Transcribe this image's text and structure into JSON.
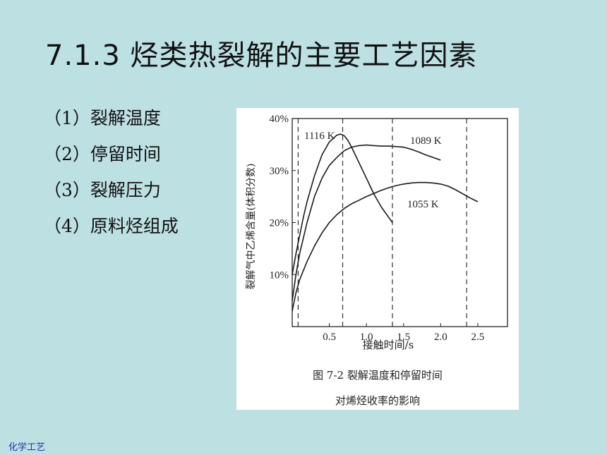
{
  "slide": {
    "title": "7.1.3 烃类热裂解的主要工艺因素",
    "bullets": [
      "（1）裂解温度",
      "（2）停留时间",
      "（3）裂解压力",
      "（4）原料烃组成"
    ],
    "footer": "化学工艺"
  },
  "chart_data": {
    "type": "line",
    "ylabel": "裂解气中乙烯含量(体积分数)",
    "xlabel": "接触时间/s",
    "xlim": [
      0,
      2.9
    ],
    "ylim": [
      0,
      40
    ],
    "xticks": [
      0.5,
      1.0,
      1.5,
      2.0,
      2.5
    ],
    "xtick_labels": [
      "0.5",
      "1.0",
      "1.5",
      "2.0",
      "2.5"
    ],
    "yticks": [
      10,
      20,
      30,
      40
    ],
    "ytick_labels": [
      "10%",
      "20%",
      "30%",
      "40%"
    ],
    "vlines": [
      0.08,
      0.68,
      1.35,
      2.35
    ],
    "series": [
      {
        "name": "1116 K",
        "x": [
          0.0,
          0.05,
          0.1,
          0.15,
          0.2,
          0.3,
          0.4,
          0.5,
          0.6,
          0.65,
          0.7,
          0.75,
          0.8,
          0.9,
          1.0,
          1.1,
          1.2,
          1.3,
          1.35
        ],
        "y": [
          10,
          14,
          17.5,
          21,
          24,
          29,
          33,
          35.5,
          36.8,
          37,
          36.7,
          35.8,
          34.5,
          31.5,
          28.5,
          25.5,
          23,
          21,
          20
        ]
      },
      {
        "name": "1089 K",
        "x": [
          0.0,
          0.05,
          0.1,
          0.2,
          0.3,
          0.4,
          0.5,
          0.6,
          0.7,
          0.8,
          0.9,
          1.0,
          1.1,
          1.2,
          1.3,
          1.4,
          1.5,
          1.6,
          1.7,
          1.8,
          1.9,
          2.0
        ],
        "y": [
          5,
          10,
          14,
          20,
          25,
          28.5,
          31,
          32.5,
          33.8,
          34.5,
          34.8,
          34.9,
          34.8,
          34.7,
          34.7,
          34.6,
          34.5,
          34.1,
          33.6,
          33.0,
          32.5,
          32
        ]
      },
      {
        "name": "1055 K",
        "x": [
          0.0,
          0.05,
          0.1,
          0.2,
          0.3,
          0.4,
          0.5,
          0.6,
          0.7,
          0.8,
          0.9,
          1.0,
          1.1,
          1.2,
          1.3,
          1.4,
          1.5,
          1.6,
          1.7,
          1.8,
          1.9,
          2.0,
          2.1,
          2.2,
          2.3,
          2.4,
          2.5
        ],
        "y": [
          3,
          6.5,
          9,
          12.5,
          15.5,
          18,
          20,
          21.5,
          22.7,
          23.6,
          24.3,
          25,
          25.6,
          26.2,
          26.7,
          27.1,
          27.4,
          27.6,
          27.7,
          27.7,
          27.6,
          27.4,
          27.0,
          26.3,
          25.5,
          24.7,
          24
        ]
      }
    ],
    "series_label_texts": [
      "1116 K",
      "1089 K",
      "1055 K"
    ],
    "caption_line1": "图 7-2   裂解温度和停留时间",
    "caption_line2": "对烯烃收率的影响",
    "grid": false,
    "legend": "inline labels"
  }
}
